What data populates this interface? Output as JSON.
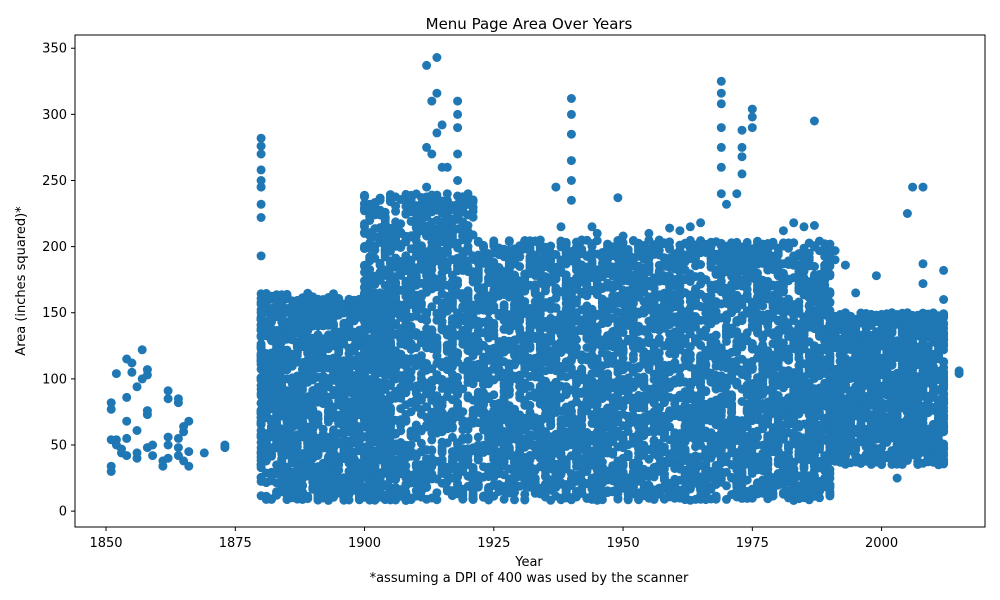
{
  "chart_data": {
    "type": "scatter",
    "title": "Menu Page Area Over Years",
    "xlabel": "Year",
    "ylabel": "Area (inches squared)*",
    "footnote": "*assuming a DPI of 400 was used by the scanner",
    "xlim": [
      1844,
      2020
    ],
    "ylim": [
      -12,
      360
    ],
    "xticks": [
      1850,
      1875,
      1900,
      1925,
      1950,
      1975,
      2000
    ],
    "yticks": [
      0,
      50,
      100,
      150,
      200,
      250,
      300,
      350
    ],
    "grid": false,
    "legend": "none",
    "marker_color": "#1f77b4",
    "series": [
      {
        "points": [
          [
            1851,
            30
          ],
          [
            1851,
            34
          ],
          [
            1851,
            54
          ],
          [
            1851,
            77
          ],
          [
            1851,
            82
          ],
          [
            1852,
            50
          ],
          [
            1852,
            54
          ],
          [
            1852,
            104
          ],
          [
            1853,
            44
          ],
          [
            1853,
            47
          ],
          [
            1854,
            42
          ],
          [
            1854,
            55
          ],
          [
            1854,
            68
          ],
          [
            1854,
            86
          ],
          [
            1854,
            115
          ],
          [
            1855,
            105
          ],
          [
            1855,
            112
          ],
          [
            1856,
            40
          ],
          [
            1856,
            44
          ],
          [
            1856,
            61
          ],
          [
            1856,
            94
          ],
          [
            1857,
            100
          ],
          [
            1857,
            122
          ],
          [
            1858,
            48
          ],
          [
            1858,
            73
          ],
          [
            1858,
            76
          ],
          [
            1858,
            103
          ],
          [
            1858,
            107
          ],
          [
            1859,
            42
          ],
          [
            1859,
            50
          ],
          [
            1861,
            34
          ],
          [
            1861,
            38
          ],
          [
            1862,
            40
          ],
          [
            1862,
            50
          ],
          [
            1862,
            56
          ],
          [
            1862,
            85
          ],
          [
            1862,
            91
          ],
          [
            1864,
            42
          ],
          [
            1864,
            48
          ],
          [
            1864,
            55
          ],
          [
            1864,
            82
          ],
          [
            1864,
            85
          ],
          [
            1865,
            38
          ],
          [
            1865,
            60
          ],
          [
            1865,
            64
          ],
          [
            1866,
            34
          ],
          [
            1866,
            45
          ],
          [
            1866,
            68
          ],
          [
            1869,
            44
          ],
          [
            1873,
            48
          ],
          [
            1873,
            50
          ],
          [
            1880,
            89
          ],
          [
            1880,
            95
          ],
          [
            1880,
            101
          ],
          [
            1880,
            113
          ],
          [
            1880,
            124
          ],
          [
            1880,
            150
          ],
          [
            1880,
            158
          ],
          [
            1880,
            193
          ],
          [
            1880,
            222
          ],
          [
            1880,
            232
          ],
          [
            1880,
            245
          ],
          [
            1880,
            250
          ],
          [
            1880,
            258
          ],
          [
            1880,
            270
          ],
          [
            1880,
            276
          ],
          [
            1880,
            282
          ],
          [
            1881,
            110
          ],
          [
            1882,
            86
          ],
          [
            1882,
            94
          ],
          [
            1884,
            100
          ],
          [
            1887,
            127
          ],
          [
            1888,
            101
          ],
          [
            1889,
            112
          ],
          [
            1890,
            113
          ],
          [
            1890,
            124
          ],
          [
            1891,
            140
          ],
          [
            1891,
            148
          ],
          [
            1891,
            160
          ],
          [
            1892,
            160
          ],
          [
            1892,
            108
          ],
          [
            1893,
            130
          ],
          [
            1895,
            122
          ],
          [
            1895,
            113
          ],
          [
            1897,
            90
          ],
          [
            1898,
            95
          ],
          [
            1899,
            115
          ],
          [
            1900,
            165
          ],
          [
            1901,
            160
          ],
          [
            1905,
            165
          ],
          [
            1907,
            167
          ],
          [
            1909,
            165
          ],
          [
            1910,
            148
          ],
          [
            1912,
            337
          ],
          [
            1912,
            275
          ],
          [
            1912,
            245
          ],
          [
            1912,
            225
          ],
          [
            1913,
            310
          ],
          [
            1913,
            270
          ],
          [
            1914,
            343
          ],
          [
            1914,
            316
          ],
          [
            1914,
            286
          ],
          [
            1915,
            292
          ],
          [
            1915,
            260
          ],
          [
            1916,
            260
          ],
          [
            1916,
            240
          ],
          [
            1918,
            310
          ],
          [
            1918,
            300
          ],
          [
            1918,
            290
          ],
          [
            1918,
            270
          ],
          [
            1918,
            250
          ],
          [
            1920,
            210
          ],
          [
            1920,
            185
          ],
          [
            1920,
            160
          ],
          [
            1925,
            155
          ],
          [
            1925,
            140
          ],
          [
            1928,
            168
          ],
          [
            1929,
            190
          ],
          [
            1931,
            170
          ],
          [
            1933,
            192
          ],
          [
            1934,
            205
          ],
          [
            1935,
            185
          ],
          [
            1937,
            245
          ],
          [
            1938,
            215
          ],
          [
            1940,
            312
          ],
          [
            1940,
            300
          ],
          [
            1940,
            285
          ],
          [
            1940,
            265
          ],
          [
            1940,
            250
          ],
          [
            1940,
            235
          ],
          [
            1942,
            205
          ],
          [
            1944,
            215
          ],
          [
            1945,
            210
          ],
          [
            1947,
            200
          ],
          [
            1949,
            237
          ],
          [
            1950,
            208
          ],
          [
            1953,
            200
          ],
          [
            1955,
            210
          ],
          [
            1957,
            205
          ],
          [
            1959,
            214
          ],
          [
            1961,
            212
          ],
          [
            1963,
            215
          ],
          [
            1965,
            218
          ],
          [
            1967,
            200
          ],
          [
            1969,
            325
          ],
          [
            1969,
            316
          ],
          [
            1969,
            308
          ],
          [
            1969,
            290
          ],
          [
            1969,
            275
          ],
          [
            1969,
            260
          ],
          [
            1969,
            240
          ],
          [
            1970,
            232
          ],
          [
            1972,
            240
          ],
          [
            1973,
            288
          ],
          [
            1973,
            275
          ],
          [
            1973,
            268
          ],
          [
            1973,
            255
          ],
          [
            1975,
            304
          ],
          [
            1975,
            298
          ],
          [
            1975,
            290
          ],
          [
            1977,
            200
          ],
          [
            1978,
            190
          ],
          [
            1981,
            212
          ],
          [
            1983,
            218
          ],
          [
            1985,
            215
          ],
          [
            1987,
            295
          ],
          [
            1987,
            216
          ],
          [
            1987,
            200
          ],
          [
            1987,
            185
          ],
          [
            1991,
            197
          ],
          [
            1991,
            190
          ],
          [
            1993,
            186
          ],
          [
            1995,
            165
          ],
          [
            1997,
            145
          ],
          [
            1999,
            178
          ],
          [
            2000,
            128
          ],
          [
            2001,
            125
          ],
          [
            2003,
            144
          ],
          [
            2005,
            225
          ],
          [
            2005,
            138
          ],
          [
            2005,
            100
          ],
          [
            2006,
            245
          ],
          [
            2006,
            128
          ],
          [
            2008,
            245
          ],
          [
            2008,
            187
          ],
          [
            2008,
            172
          ],
          [
            2008,
            142
          ],
          [
            2012,
            182
          ],
          [
            2012,
            160
          ],
          [
            2012,
            148
          ],
          [
            2012,
            122
          ],
          [
            2012,
            96
          ],
          [
            2012,
            85
          ],
          [
            2015,
            106
          ],
          [
            2015,
            104
          ],
          [
            1885,
            45
          ],
          [
            1887,
            40
          ],
          [
            1889,
            30
          ],
          [
            1891,
            55
          ],
          [
            1893,
            48
          ],
          [
            1895,
            35
          ],
          [
            1897,
            42
          ],
          [
            1899,
            25
          ],
          [
            1906,
            28
          ],
          [
            1908,
            40
          ],
          [
            1911,
            45
          ],
          [
            1913,
            35
          ],
          [
            1917,
            45
          ],
          [
            1919,
            30
          ],
          [
            1922,
            20
          ],
          [
            1924,
            60
          ],
          [
            1927,
            45
          ],
          [
            1930,
            30
          ],
          [
            1932,
            50
          ],
          [
            1936,
            40
          ],
          [
            1939,
            35
          ],
          [
            1943,
            30
          ],
          [
            1946,
            45
          ],
          [
            1948,
            25
          ],
          [
            1952,
            35
          ],
          [
            1954,
            50
          ],
          [
            1956,
            30
          ],
          [
            1958,
            45
          ],
          [
            1960,
            35
          ],
          [
            1962,
            25
          ],
          [
            1964,
            40
          ],
          [
            1966,
            30
          ],
          [
            1968,
            45
          ],
          [
            1971,
            35
          ],
          [
            1974,
            50
          ],
          [
            1976,
            40
          ],
          [
            1979,
            45
          ],
          [
            1982,
            50
          ],
          [
            1984,
            45
          ],
          [
            1986,
            40
          ],
          [
            1989,
            42
          ],
          [
            1992,
            57
          ],
          [
            1994,
            57
          ],
          [
            1996,
            60
          ],
          [
            1998,
            65
          ],
          [
            2001,
            52
          ],
          [
            2003,
            25
          ],
          [
            1935,
            20
          ],
          [
            1940,
            10
          ],
          [
            1945,
            15
          ],
          [
            1955,
            10
          ],
          [
            1965,
            12
          ],
          [
            1975,
            15
          ],
          [
            1982,
            10
          ],
          [
            1987,
            12
          ]
        ]
      }
    ],
    "dense_regions": [
      {
        "x_range": [
          1880,
          1905
        ],
        "y_range": [
          8,
          165
        ]
      },
      {
        "x_range": [
          1900,
          1921
        ],
        "y_range": [
          8,
          240
        ]
      },
      {
        "x_range": [
          1922,
          1990
        ],
        "y_range": [
          8,
          205
        ]
      },
      {
        "x_range": [
          1990,
          2012
        ],
        "y_range": [
          35,
          150
        ]
      }
    ]
  }
}
